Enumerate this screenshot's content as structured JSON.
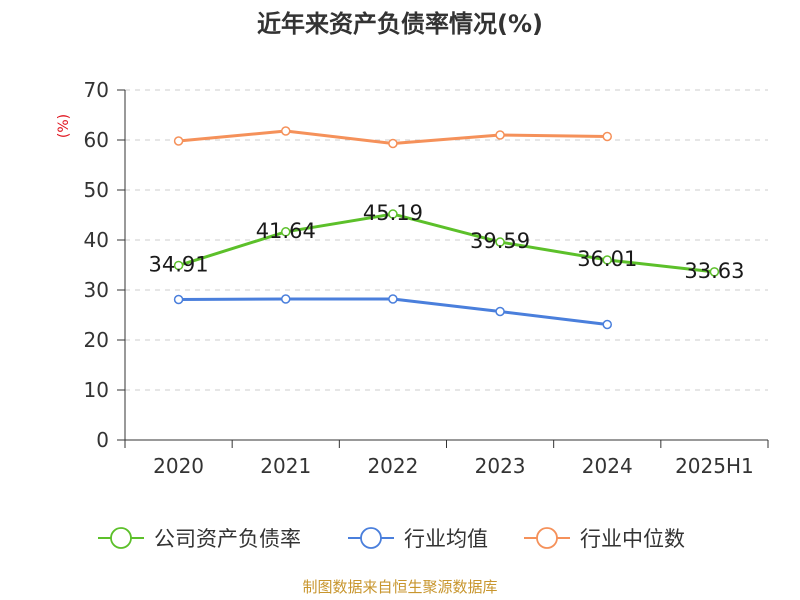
{
  "chart_data": {
    "type": "line",
    "title": "近年来资产负债率情况(%)",
    "ylabel": "(%)",
    "xlabel": "",
    "categories": [
      "2020",
      "2021",
      "2022",
      "2023",
      "2024",
      "2025H1"
    ],
    "ylim": [
      0,
      70
    ],
    "yticks": [
      0,
      10,
      20,
      30,
      40,
      50,
      60,
      70
    ],
    "grid": true,
    "legend_position": "bottom",
    "series": [
      {
        "name": "公司资产负债率",
        "color": "#5cc02a",
        "values": [
          34.91,
          41.64,
          45.19,
          39.59,
          36.01,
          33.63
        ],
        "labels": [
          "34.91",
          "41.64",
          "45.19",
          "39.59",
          "36.01",
          "33.63"
        ],
        "show_labels": true
      },
      {
        "name": "行业均值",
        "color": "#4a7fdc",
        "values": [
          28.1,
          28.2,
          28.2,
          25.7,
          23.1,
          null
        ],
        "show_labels": false
      },
      {
        "name": "行业中位数",
        "color": "#f5915a",
        "values": [
          59.8,
          61.8,
          59.3,
          61.0,
          60.7,
          null
        ],
        "show_labels": false
      }
    ]
  },
  "footer": {
    "source": "制图数据来自恒生聚源数据库"
  }
}
